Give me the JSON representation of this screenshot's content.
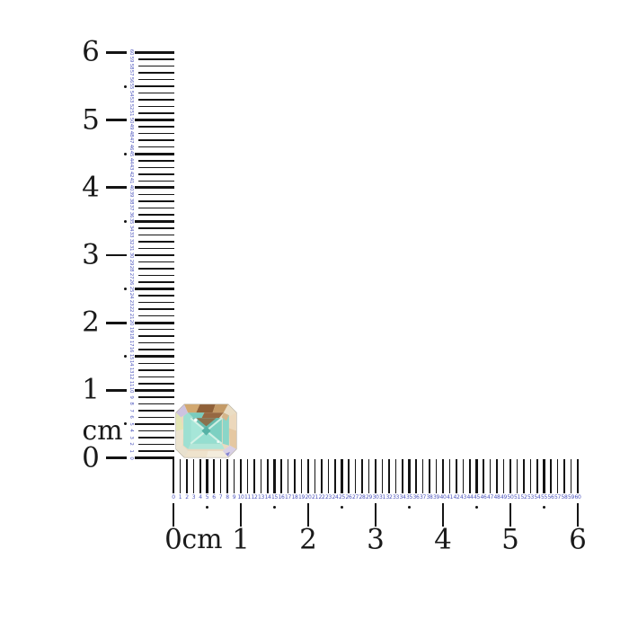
{
  "image": {
    "description": "Iridescent emerald-cut gemstone photographed at the corner of two centimeter rulers",
    "background_color": "#ffffff"
  },
  "colors": {
    "tick": "#141414",
    "cm_label": "#1a1a1a",
    "mm_number": "#4d55bd"
  },
  "vertical_ruler": {
    "unit_label": "cm",
    "cm_values": [
      "0",
      "1",
      "2",
      "3",
      "4",
      "5",
      "6"
    ],
    "mm_min": 0,
    "mm_max": 60
  },
  "horizontal_ruler": {
    "unit_label": "cm",
    "cm_values": [
      "0",
      "1",
      "2",
      "3",
      "4",
      "5",
      "6"
    ],
    "mm_min": 0,
    "mm_max": 60
  },
  "gem": {
    "name": "emerald-cut iridescent gemstone",
    "palette": {
      "edge": "#b7b0a2",
      "creamBase": "#ead9c0",
      "lavender": "#cdc3e0",
      "tan": "#d2a870",
      "brown": "#8f6038",
      "tan2": "#c49a66",
      "cream2": "#eaddc4",
      "peachCream": "#ecd8bc",
      "peach": "#e5c8a2",
      "lavenderLight": "#d8d0e6",
      "creamWhite": "#f3ecdc",
      "cream3": "#eee3cd",
      "pale": "#e8e1cf",
      "cream4": "#ebe3cf",
      "yellowGreen": "#e3e5b4",
      "teal1": "#79ccbe",
      "brownStreak": "#966842",
      "aqua2": "#8ad6c8",
      "peachSliver": "#d6b68a",
      "mintBottom": "#b0e6d8",
      "mintLeft": "#9de0d2",
      "tableBase": "#84d4c6",
      "tealTop": "#68bcae",
      "brownOverlay": "#8f6844",
      "mintL2": "#a6e6d8",
      "aquaR2": "#7cd0c2",
      "mintB2": "#95ded0",
      "crossLight": "#def4ea",
      "centerTeal": "#56b2a6",
      "white": "#ffffff",
      "blueSpeck": "#7678cc"
    }
  }
}
